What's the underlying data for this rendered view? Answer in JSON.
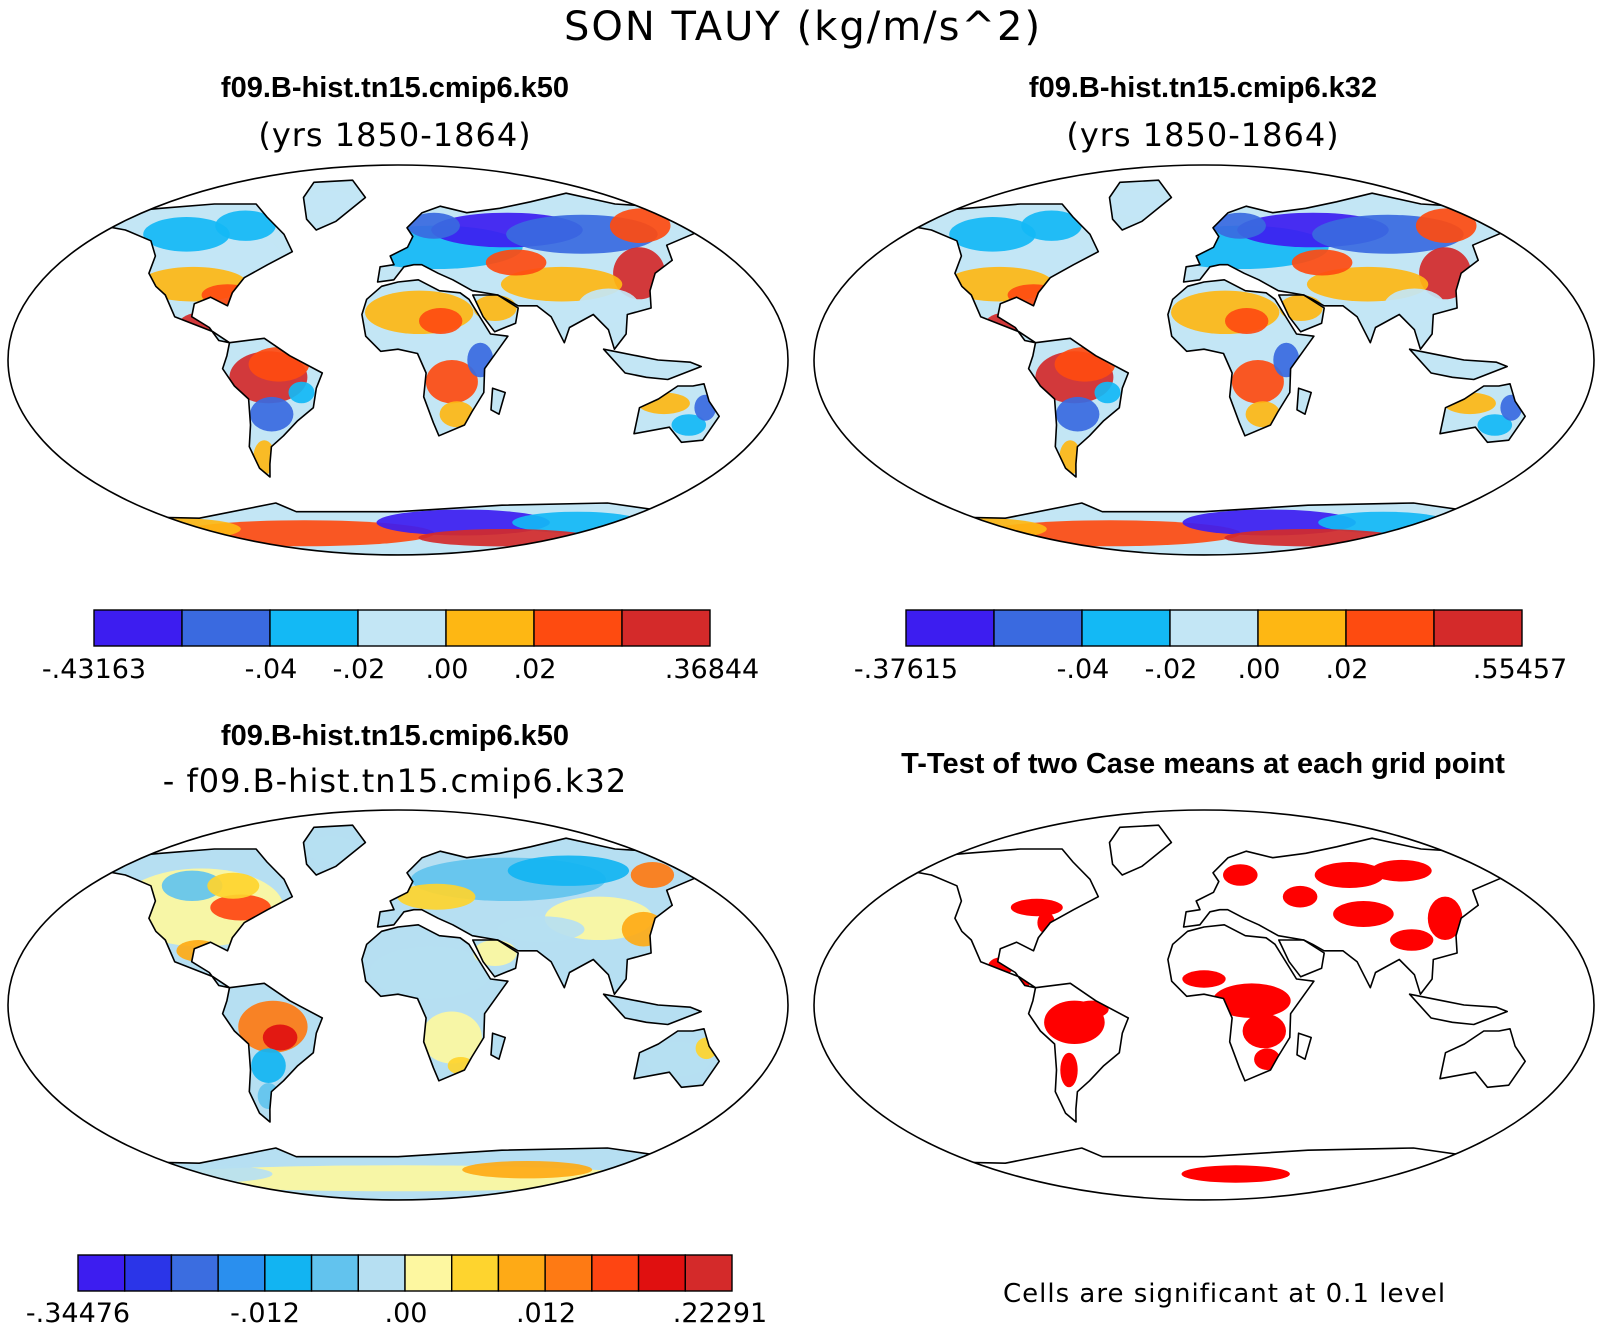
{
  "main_title": "SON TAUY (kg/m/s^2)",
  "panels": [
    {
      "title": "f09.B-hist.tn15.cmip6.k50",
      "subtitle": "(yrs 1850-1864)",
      "type": "field",
      "colorbar": {
        "colors": [
          "#3d1df0",
          "#3a6ae0",
          "#13b9f5",
          "#c3e6f5",
          "#feb713",
          "#fe4b10",
          "#d42a2a"
        ],
        "labels": [
          "-.43163",
          "-.04",
          "-.02",
          ".00",
          ".02",
          ".36844"
        ],
        "label_edges": [
          0,
          2,
          3,
          4,
          5,
          7
        ]
      }
    },
    {
      "title": "f09.B-hist.tn15.cmip6.k32",
      "subtitle": "(yrs 1850-1864)",
      "type": "field",
      "colorbar": {
        "colors": [
          "#3d1df0",
          "#3a6ae0",
          "#13b9f5",
          "#c3e6f5",
          "#feb713",
          "#fe4b10",
          "#d42a2a"
        ],
        "labels": [
          "-.37615",
          "-.04",
          "-.02",
          ".00",
          ".02",
          ".55457"
        ],
        "label_edges": [
          0,
          2,
          3,
          4,
          5,
          7
        ]
      }
    },
    {
      "title": "f09.B-hist.tn15.cmip6.k50",
      "subtitle": "- f09.B-hist.tn15.cmip6.k32",
      "type": "difference",
      "colorbar": {
        "colors": [
          "#3d1df0",
          "#2b35e8",
          "#3b6de0",
          "#2a8fee",
          "#12b4f2",
          "#62c3ee",
          "#b6dff2",
          "#fdf7a0",
          "#fed42e",
          "#feaa16",
          "#fe7a14",
          "#fe4512",
          "#e01010",
          "#d42a2a"
        ],
        "labels": [
          "-.34476",
          "-.012",
          ".00",
          ".012",
          ".22291"
        ],
        "label_edges": [
          0,
          4,
          7,
          10,
          14
        ]
      }
    },
    {
      "title": "T-Test of two Case means at each grid point",
      "subtitle": "",
      "type": "ttest",
      "note": "Cells are significant at 0.1 level",
      "significant_color": "#ff0000"
    }
  ]
}
